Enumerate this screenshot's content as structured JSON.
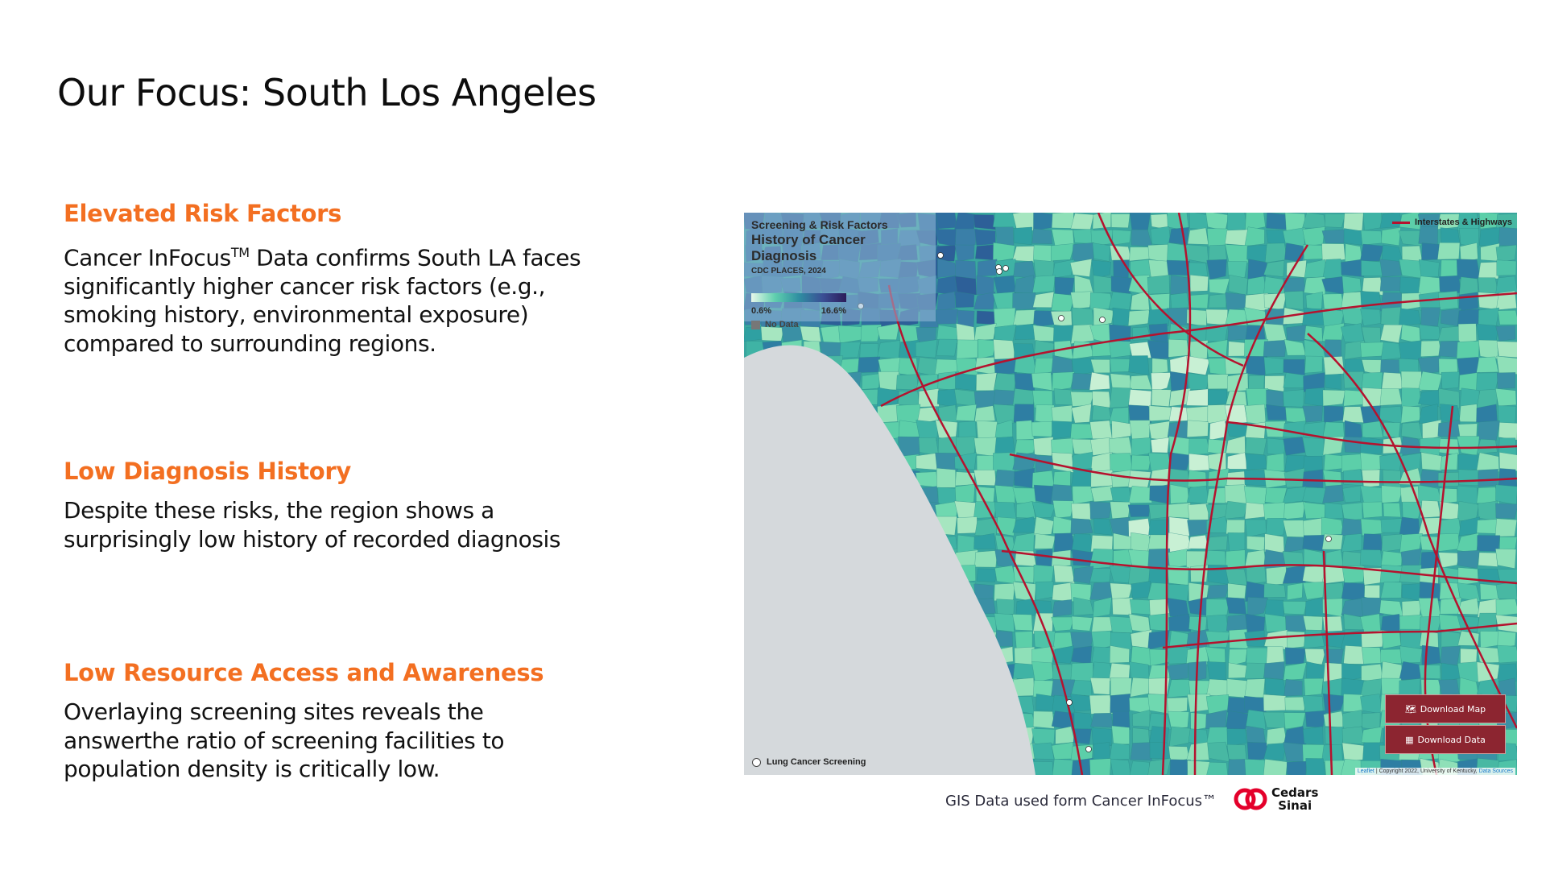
{
  "slide": {
    "title": "Our Focus: South Los Angeles"
  },
  "sections": [
    {
      "heading": "Elevated Risk Factors",
      "body": "Cancer InFocus",
      "tm": "TM",
      "body_rest": "  Data confirms South LA faces significantly higher cancer risk factors (e.g., smoking history, environmental exposure) compared to surrounding regions."
    },
    {
      "heading": "Low Diagnosis History",
      "body": "Despite these risks, the region shows a surprisingly low history of recorded diagnosis"
    },
    {
      "heading": "Low Resource Access and Awareness",
      "body": "Overlaying screening sites reveals the answerthe ratio of screening facilities to population density is critically low."
    }
  ],
  "map": {
    "legend": {
      "category": "Screening & Risk Factors",
      "measure": "History of Cancer Diagnosis",
      "source": "CDC PLACES, 2024",
      "min": "0.6%",
      "max": "16.6%",
      "no_data": "No Data"
    },
    "highways_label": "Interstates & Highways",
    "points_label": "Lung Cancer Screening",
    "download_map": "Download Map",
    "download_data": "Download Data",
    "attribution": {
      "leaflet": "Leaflet",
      "copyright": " | Copyright 2022, University of Kentucky, ",
      "sources": "Data Sources"
    },
    "colors": {
      "highway": "#b5122e",
      "ocean": "#d5d9dc",
      "no_data": "#7a7a7a",
      "button": "#8c2530"
    }
  },
  "footer": {
    "credit": "GIS Data used form Cancer InFocus™",
    "logo_text": "Cedars Sinai"
  }
}
